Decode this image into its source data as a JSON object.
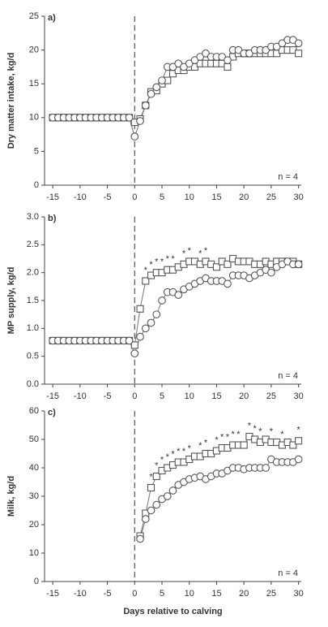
{
  "chart_data": [
    {
      "type": "line",
      "title": "a)",
      "ylabel": "Dry matter intake, kg/d",
      "annotation": "n = 4",
      "x": [
        -15,
        -14,
        -13,
        -12,
        -11,
        -10,
        -9,
        -8,
        -7,
        -6,
        -5,
        -4,
        -3,
        -2,
        -1,
        0,
        1,
        2,
        3,
        4,
        5,
        6,
        7,
        8,
        9,
        10,
        11,
        12,
        13,
        14,
        15,
        16,
        17,
        18,
        19,
        20,
        21,
        22,
        23,
        24,
        25,
        26,
        27,
        28,
        29,
        30
      ],
      "series": [
        {
          "marker": "square",
          "color": "#555555",
          "values": [
            10,
            10,
            10,
            10,
            10,
            10,
            10,
            10,
            10,
            10,
            10,
            10,
            10,
            10,
            10,
            9.3,
            9.8,
            11.8,
            13.8,
            14,
            15,
            15.5,
            16.5,
            17,
            17,
            17.5,
            17.5,
            18,
            18,
            18,
            18,
            18,
            17.5,
            19,
            19.5,
            19.5,
            19.5,
            19.5,
            19.5,
            19.5,
            19.5,
            19.5,
            20,
            20,
            20,
            19.5
          ]
        },
        {
          "marker": "circle",
          "color": "#555555",
          "values": [
            10,
            10,
            10,
            10,
            10,
            10,
            10,
            10,
            10,
            10,
            10,
            10,
            10,
            10,
            10,
            7.2,
            9.5,
            11.8,
            13.5,
            14.5,
            15.5,
            17.5,
            17.5,
            18,
            17.5,
            18,
            18.5,
            19,
            19.5,
            19,
            19,
            19,
            18.5,
            20,
            20,
            19.5,
            19.5,
            20,
            20,
            20,
            20.5,
            20.5,
            21,
            21.5,
            21.5,
            21
          ]
        }
      ],
      "xlim": [
        -16.5,
        30.5
      ],
      "xticks": [
        -15,
        -10,
        -5,
        0,
        5,
        10,
        15,
        20,
        25,
        30
      ],
      "ylim": [
        0,
        25
      ],
      "yticks": [
        0,
        5,
        10,
        15,
        20,
        25
      ],
      "vline": 0,
      "grid": false
    },
    {
      "type": "line",
      "title": "b)",
      "ylabel": "MP supply, kg/d",
      "annotation": "n = 4",
      "x": [
        -15,
        -14,
        -13,
        -12,
        -11,
        -10,
        -9,
        -8,
        -7,
        -6,
        -5,
        -4,
        -3,
        -2,
        -1,
        0,
        1,
        2,
        3,
        4,
        5,
        6,
        7,
        8,
        9,
        10,
        11,
        12,
        13,
        14,
        15,
        16,
        17,
        18,
        19,
        20,
        21,
        22,
        23,
        24,
        25,
        26,
        27,
        28,
        29,
        30
      ],
      "series": [
        {
          "marker": "square",
          "color": "#555555",
          "values": [
            0.78,
            0.78,
            0.78,
            0.78,
            0.78,
            0.78,
            0.78,
            0.78,
            0.78,
            0.78,
            0.78,
            0.78,
            0.78,
            0.78,
            0.78,
            0.7,
            1.35,
            1.85,
            1.95,
            2.0,
            2.0,
            2.05,
            2.05,
            2.1,
            2.15,
            2.2,
            2.2,
            2.15,
            2.2,
            2.15,
            2.1,
            2.2,
            2.15,
            2.25,
            2.2,
            2.2,
            2.2,
            2.15,
            2.15,
            2.2,
            2.15,
            2.2,
            2.2,
            2.2,
            2.2,
            2.15
          ]
        },
        {
          "marker": "circle",
          "color": "#555555",
          "values": [
            0.78,
            0.78,
            0.78,
            0.78,
            0.78,
            0.78,
            0.78,
            0.78,
            0.78,
            0.78,
            0.78,
            0.78,
            0.78,
            0.78,
            0.78,
            0.55,
            0.85,
            1.0,
            1.1,
            1.25,
            1.5,
            1.65,
            1.65,
            1.6,
            1.7,
            1.75,
            1.8,
            1.85,
            1.9,
            1.85,
            1.85,
            1.85,
            1.8,
            1.95,
            1.95,
            1.95,
            1.9,
            1.95,
            2.0,
            2.05,
            2.0,
            2.1,
            2.15,
            2.2,
            2.15,
            2.15
          ]
        }
      ],
      "stars": [
        {
          "x": 2,
          "text": "*"
        },
        {
          "x": 3,
          "text": "*"
        },
        {
          "x": 4,
          "text": "*"
        },
        {
          "x": 5,
          "text": "*"
        },
        {
          "x": 6,
          "text": "*"
        },
        {
          "x": 7,
          "text": "*"
        },
        {
          "x": 9,
          "text": "*"
        },
        {
          "x": 10,
          "text": "*"
        },
        {
          "x": 12,
          "text": "*"
        },
        {
          "x": 13,
          "text": "*"
        }
      ],
      "xlim": [
        -16.5,
        30.5
      ],
      "xticks": [
        -15,
        -10,
        -5,
        0,
        5,
        10,
        15,
        20,
        25,
        30
      ],
      "ylim": [
        0,
        3
      ],
      "yticks": [
        {
          "value": 0,
          "label": "0.0"
        },
        0.5,
        {
          "value": 1,
          "label": "1.0"
        },
        1.5,
        {
          "value": 2,
          "label": "2.0"
        },
        2.5,
        {
          "value": 3,
          "label": "3.0"
        }
      ],
      "vline": 0,
      "grid": false
    },
    {
      "type": "line",
      "title": "c)",
      "ylabel": "Milk, kg/d",
      "xlabel": "Days relative to calving",
      "annotation": "n = 4",
      "x": [
        1,
        2,
        3,
        4,
        5,
        6,
        7,
        8,
        9,
        10,
        11,
        12,
        13,
        14,
        15,
        16,
        17,
        18,
        19,
        20,
        21,
        22,
        23,
        24,
        25,
        26,
        27,
        28,
        29,
        30
      ],
      "series": [
        {
          "marker": "square",
          "color": "#555555",
          "values": [
            16,
            24,
            33,
            37,
            39,
            40,
            41,
            42,
            42,
            43,
            44,
            44,
            45,
            45,
            46,
            47,
            47,
            48,
            48,
            48,
            51,
            50,
            49,
            50,
            49,
            49,
            48,
            49,
            48,
            49.5
          ]
        },
        {
          "marker": "circle",
          "color": "#555555",
          "values": [
            15,
            22,
            25,
            27,
            29,
            30,
            32,
            34,
            35,
            36,
            36.5,
            37,
            36,
            37,
            38,
            38,
            39,
            40,
            40,
            39.5,
            40,
            40,
            40,
            40,
            43,
            42,
            42,
            42,
            42,
            43
          ]
        }
      ],
      "stars": [
        {
          "x": 3,
          "text": "*"
        },
        {
          "x": 4,
          "text": "*"
        },
        {
          "x": 5,
          "text": "*"
        },
        {
          "x": 6,
          "text": "*"
        },
        {
          "x": 7,
          "text": "*"
        },
        {
          "x": 8,
          "text": "*"
        },
        {
          "x": 9,
          "text": "*"
        },
        {
          "x": 10,
          "text": "*"
        },
        {
          "x": 12,
          "text": "*"
        },
        {
          "x": 13,
          "text": "*"
        },
        {
          "x": 15,
          "text": "*"
        },
        {
          "x": 16,
          "text": "*"
        },
        {
          "x": 17,
          "text": "*"
        },
        {
          "x": 18,
          "text": "*"
        },
        {
          "x": 19,
          "text": "*"
        },
        {
          "x": 21,
          "text": "*"
        },
        {
          "x": 22,
          "text": "*"
        },
        {
          "x": 23,
          "text": "*"
        },
        {
          "x": 25,
          "text": "*"
        },
        {
          "x": 27,
          "text": "*"
        },
        {
          "x": 30,
          "text": "*"
        }
      ],
      "xlim": [
        -16.5,
        30.5
      ],
      "xticks": [
        -15,
        -10,
        -5,
        0,
        5,
        10,
        15,
        20,
        25,
        30
      ],
      "ylim": [
        0,
        60
      ],
      "yticks": [
        0,
        10,
        20,
        30,
        40,
        50,
        60
      ],
      "vline": 0,
      "grid": false
    }
  ]
}
